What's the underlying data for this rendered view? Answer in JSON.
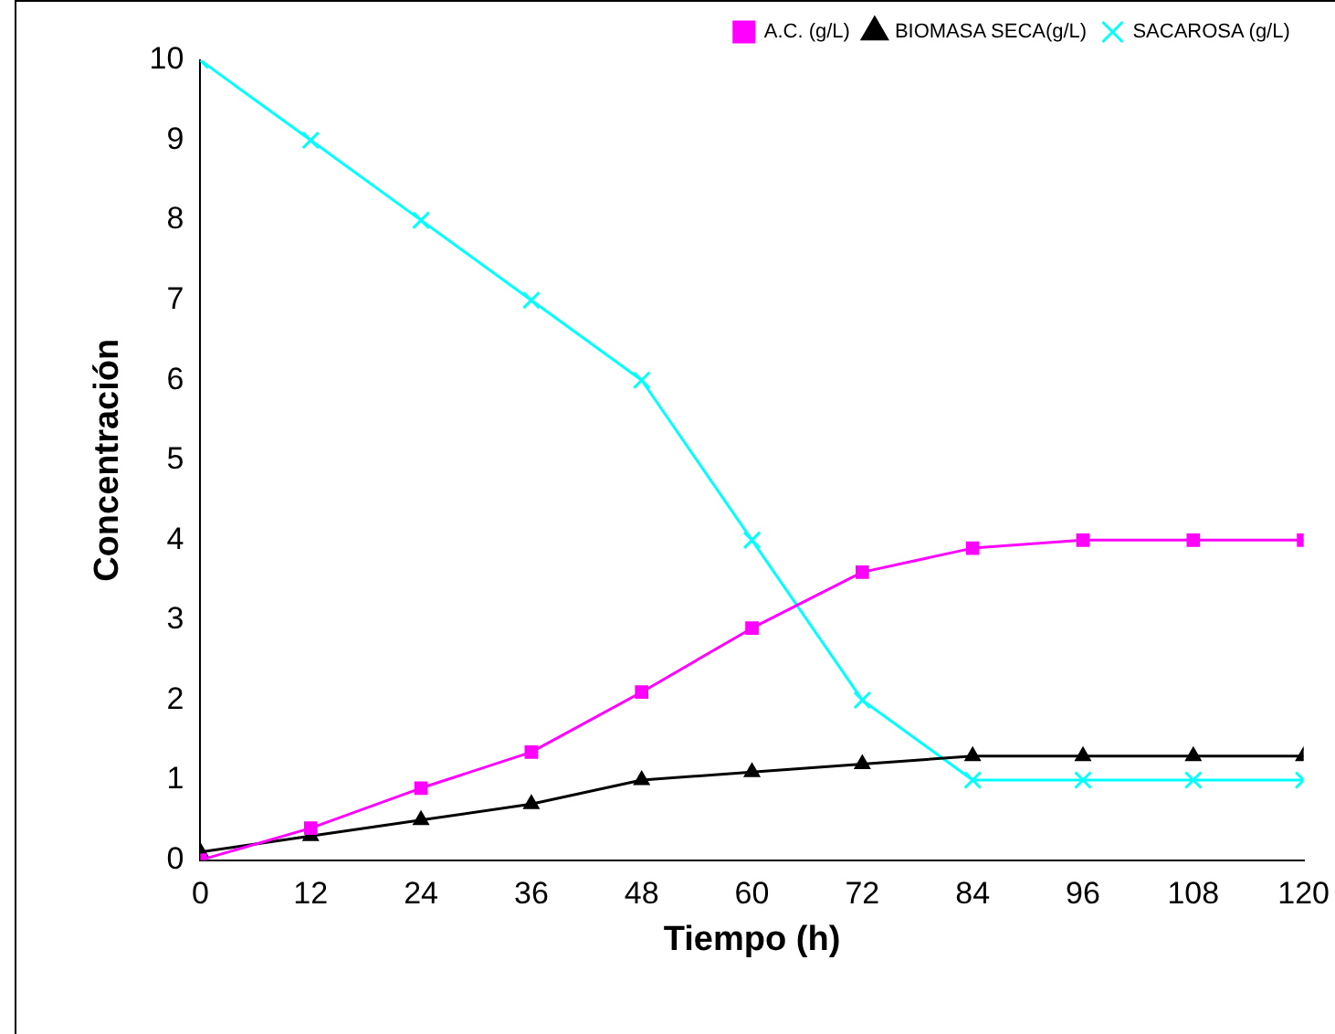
{
  "chart_data": {
    "type": "line",
    "xlabel": "Tiempo (h)",
    "ylabel": "Concentración",
    "x": [
      0,
      12,
      24,
      36,
      48,
      60,
      72,
      84,
      96,
      108,
      120
    ],
    "xlim": [
      0,
      120
    ],
    "xticks": [
      0,
      12,
      24,
      36,
      48,
      60,
      72,
      84,
      96,
      108,
      120
    ],
    "ylim": [
      0,
      10
    ],
    "yticks": [
      0,
      1,
      2,
      3,
      4,
      5,
      6,
      7,
      8,
      9,
      10
    ],
    "grid": false,
    "legend": "top right",
    "series": [
      {
        "name": "A.C. (g/L)",
        "color": "#ff00ff",
        "marker": "square",
        "values": [
          0,
          0.4,
          0.9,
          1.35,
          2.1,
          2.9,
          3.6,
          3.9,
          4,
          4,
          4
        ]
      },
      {
        "name": "BIOMASA SECA(g/L)",
        "color": "#000000",
        "marker": "triangle",
        "values": [
          0.1,
          0.3,
          0.5,
          0.7,
          1,
          1.1,
          1.2,
          1.3,
          1.3,
          1.3,
          1.3
        ]
      },
      {
        "name": "SACAROSA (g/L)",
        "color": "#00ffff",
        "marker": "cross",
        "values": [
          10,
          9,
          8,
          7,
          6,
          4,
          2,
          1,
          1,
          1,
          1
        ]
      }
    ]
  }
}
